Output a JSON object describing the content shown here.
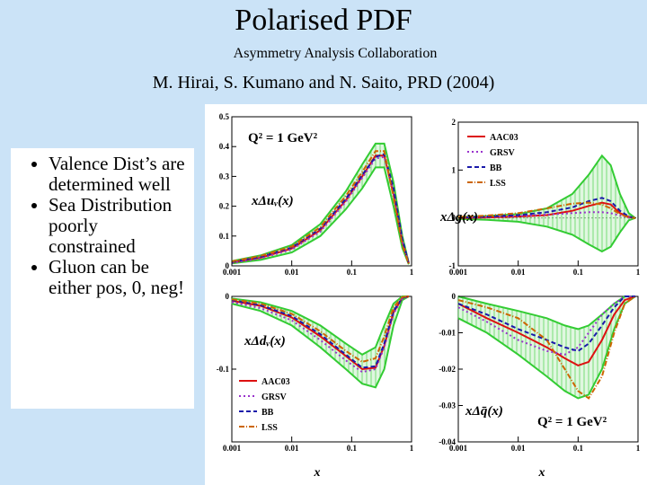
{
  "slide": {
    "title": "Polarised PDF",
    "collaboration": "Asymmetry Analysis Collaboration",
    "citation": "M. Hirai, S. Kumano and N. Saito, PRD (2004)",
    "bullets": [
      "Valence Dist’s are determined well",
      "Sea Distribution poorly constrained",
      "Gluon can be either pos, 0, neg!"
    ]
  },
  "colors": {
    "AAC03": "#dd1111",
    "GRSV": "#9933cc",
    "BB": "#1a1aaa",
    "LSS": "#cc6600",
    "band": "#33cc33",
    "slide_bg": "#cbe3f7"
  },
  "chart_data": [
    {
      "type": "line",
      "id": "uv",
      "annotation": "Q² = 1 GeV²",
      "ylabel": "xΔuᵥ(x)",
      "xlabel": "",
      "xscale": "log",
      "xlim": [
        0.001,
        1
      ],
      "ylim": [
        0,
        0.5
      ],
      "xticks": [
        "0.001",
        "0.01",
        "0.1",
        "1"
      ],
      "yticks": [
        "0",
        "0.1",
        "0.2",
        "0.3",
        "0.4",
        "0.5"
      ],
      "x": [
        0.001,
        0.003,
        0.01,
        0.03,
        0.08,
        0.15,
        0.25,
        0.35,
        0.5,
        0.7,
        0.9
      ],
      "band_upper": [
        0.016,
        0.035,
        0.07,
        0.14,
        0.25,
        0.34,
        0.41,
        0.41,
        0.28,
        0.1,
        0.01
      ],
      "band_lower": [
        0.008,
        0.02,
        0.045,
        0.1,
        0.19,
        0.26,
        0.33,
        0.33,
        0.2,
        0.06,
        0.005
      ],
      "series": [
        {
          "name": "AAC03",
          "values": [
            0.012,
            0.027,
            0.058,
            0.12,
            0.22,
            0.3,
            0.37,
            0.37,
            0.24,
            0.08,
            0.008
          ]
        },
        {
          "name": "GRSV",
          "values": [
            0.01,
            0.025,
            0.055,
            0.115,
            0.215,
            0.295,
            0.36,
            0.365,
            0.25,
            0.085,
            0.008
          ]
        },
        {
          "name": "BB",
          "values": [
            0.013,
            0.03,
            0.062,
            0.125,
            0.225,
            0.305,
            0.365,
            0.375,
            0.26,
            0.09,
            0.008
          ]
        },
        {
          "name": "LSS",
          "values": [
            0.015,
            0.033,
            0.065,
            0.13,
            0.235,
            0.315,
            0.385,
            0.385,
            0.23,
            0.07,
            0.006
          ]
        }
      ]
    },
    {
      "type": "line",
      "id": "g",
      "ylabel": "xΔg(x)",
      "xlabel": "",
      "xscale": "log",
      "xlim": [
        0.001,
        1
      ],
      "ylim": [
        -1,
        2
      ],
      "xticks": [
        "0.001",
        "0.01",
        "0.1",
        "1"
      ],
      "yticks": [
        "-1",
        "0",
        "1",
        "2"
      ],
      "legend": [
        "AAC03",
        "GRSV",
        "BB",
        "LSS"
      ],
      "legend_position": "top-left",
      "x": [
        0.001,
        0.003,
        0.01,
        0.03,
        0.08,
        0.15,
        0.25,
        0.35,
        0.5,
        0.7,
        0.9
      ],
      "band_upper": [
        0.02,
        0.04,
        0.08,
        0.2,
        0.5,
        0.9,
        1.3,
        1.1,
        0.5,
        0.1,
        0
      ],
      "band_lower": [
        -0.02,
        -0.04,
        -0.08,
        -0.18,
        -0.35,
        -0.55,
        -0.7,
        -0.6,
        -0.3,
        -0.05,
        0
      ],
      "series": [
        {
          "name": "AAC03",
          "values": [
            0.0,
            0.01,
            0.03,
            0.06,
            0.15,
            0.25,
            0.32,
            0.28,
            0.1,
            0.02,
            0.0
          ]
        },
        {
          "name": "GRSV",
          "values": [
            0.01,
            0.02,
            0.04,
            0.07,
            0.1,
            0.12,
            0.12,
            0.1,
            0.05,
            0.01,
            0.0
          ]
        },
        {
          "name": "BB",
          "values": [
            0.01,
            0.03,
            0.06,
            0.12,
            0.22,
            0.35,
            0.42,
            0.35,
            0.15,
            0.03,
            0.0
          ]
        },
        {
          "name": "LSS",
          "values": [
            0.02,
            0.05,
            0.1,
            0.2,
            0.3,
            0.32,
            0.28,
            0.2,
            0.08,
            0.01,
            0.0
          ]
        }
      ]
    },
    {
      "type": "line",
      "id": "dv",
      "ylabel": "xΔdᵥ(x)",
      "xlabel": "x",
      "xscale": "log",
      "xlim": [
        0.001,
        1
      ],
      "ylim": [
        -0.2,
        0
      ],
      "xticks": [
        "0.001",
        "0.01",
        "0.1",
        "1"
      ],
      "yticks": [
        "-0.1",
        "0"
      ],
      "legend": [
        "AAC03",
        "GRSV",
        "BB",
        "LSS"
      ],
      "legend_position": "bottom-left",
      "x": [
        0.001,
        0.003,
        0.01,
        0.03,
        0.08,
        0.15,
        0.25,
        0.35,
        0.5,
        0.7,
        0.9
      ],
      "band_upper": [
        -0.003,
        -0.008,
        -0.02,
        -0.04,
        -0.065,
        -0.08,
        -0.07,
        -0.04,
        -0.01,
        0,
        0
      ],
      "band_lower": [
        -0.01,
        -0.02,
        -0.04,
        -0.07,
        -0.1,
        -0.12,
        -0.125,
        -0.1,
        -0.04,
        -0.005,
        0
      ],
      "series": [
        {
          "name": "AAC03",
          "values": [
            -0.006,
            -0.013,
            -0.029,
            -0.055,
            -0.082,
            -0.1,
            -0.098,
            -0.068,
            -0.022,
            -0.002,
            0
          ]
        },
        {
          "name": "GRSV",
          "values": [
            -0.008,
            -0.016,
            -0.033,
            -0.06,
            -0.088,
            -0.104,
            -0.1,
            -0.07,
            -0.024,
            -0.003,
            0
          ]
        },
        {
          "name": "BB",
          "values": [
            -0.005,
            -0.012,
            -0.027,
            -0.052,
            -0.08,
            -0.098,
            -0.096,
            -0.065,
            -0.02,
            -0.002,
            0
          ]
        },
        {
          "name": "LSS",
          "values": [
            -0.004,
            -0.01,
            -0.024,
            -0.048,
            -0.075,
            -0.09,
            -0.085,
            -0.055,
            -0.015,
            -0.001,
            0
          ]
        }
      ]
    },
    {
      "type": "line",
      "id": "qbar",
      "annotation": "Q² = 1 GeV²",
      "ylabel": "xΔq̄(x)",
      "xlabel": "x",
      "xscale": "log",
      "xlim": [
        0.001,
        1
      ],
      "ylim": [
        -0.04,
        0
      ],
      "xticks": [
        "0.001",
        "0.01",
        "0.1",
        "1"
      ],
      "yticks": [
        "-0.04",
        "-0.03",
        "-0.02",
        "-0.01",
        "0"
      ],
      "x": [
        0.001,
        0.003,
        0.01,
        0.03,
        0.06,
        0.1,
        0.15,
        0.25,
        0.4,
        0.6,
        0.9
      ],
      "band_upper": [
        0.0,
        -0.002,
        -0.004,
        -0.006,
        -0.008,
        -0.009,
        -0.008,
        -0.005,
        -0.002,
        0,
        0
      ],
      "band_lower": [
        -0.006,
        -0.01,
        -0.016,
        -0.022,
        -0.026,
        -0.028,
        -0.027,
        -0.02,
        -0.009,
        -0.002,
        0
      ],
      "series": [
        {
          "name": "AAC03",
          "values": [
            -0.002,
            -0.006,
            -0.01,
            -0.014,
            -0.017,
            -0.019,
            -0.018,
            -0.012,
            -0.005,
            -0.001,
            0
          ]
        },
        {
          "name": "GRSV",
          "values": [
            -0.003,
            -0.007,
            -0.012,
            -0.015,
            -0.016,
            -0.014,
            -0.01,
            -0.005,
            -0.002,
            0,
            0
          ]
        },
        {
          "name": "BB",
          "values": [
            -0.002,
            -0.005,
            -0.009,
            -0.012,
            -0.014,
            -0.015,
            -0.013,
            -0.008,
            -0.003,
            0,
            0
          ]
        },
        {
          "name": "LSS",
          "values": [
            -0.001,
            -0.003,
            -0.006,
            -0.012,
            -0.02,
            -0.026,
            -0.028,
            -0.022,
            -0.01,
            -0.002,
            0
          ]
        }
      ]
    }
  ]
}
